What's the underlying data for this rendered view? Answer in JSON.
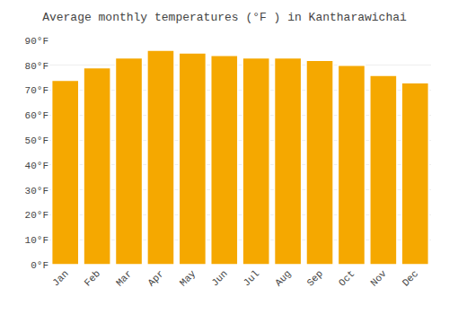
{
  "chart_data": {
    "type": "bar",
    "title": "Average monthly temperatures (°F ) in Kantharawichai",
    "categories": [
      "Jan",
      "Feb",
      "Mar",
      "Apr",
      "May",
      "Jun",
      "Jul",
      "Aug",
      "Sep",
      "Oct",
      "Nov",
      "Dec"
    ],
    "values": [
      74,
      79,
      83,
      86,
      85,
      84,
      83,
      83,
      82,
      80,
      76,
      73
    ],
    "color": "#F5A800",
    "ylim": [
      0,
      90
    ],
    "yticks": [
      {
        "value": 0,
        "label": "0°F"
      },
      {
        "value": 10,
        "label": "10°F"
      },
      {
        "value": 20,
        "label": "20°F"
      },
      {
        "value": 30,
        "label": "30°F"
      },
      {
        "value": 40,
        "label": "40°F"
      },
      {
        "value": 50,
        "label": "50°F"
      },
      {
        "value": 60,
        "label": "60°F"
      },
      {
        "value": 70,
        "label": "70°F"
      },
      {
        "value": 80,
        "label": "80°F"
      },
      {
        "value": 90,
        "label": "90°F"
      }
    ],
    "grid": true
  }
}
